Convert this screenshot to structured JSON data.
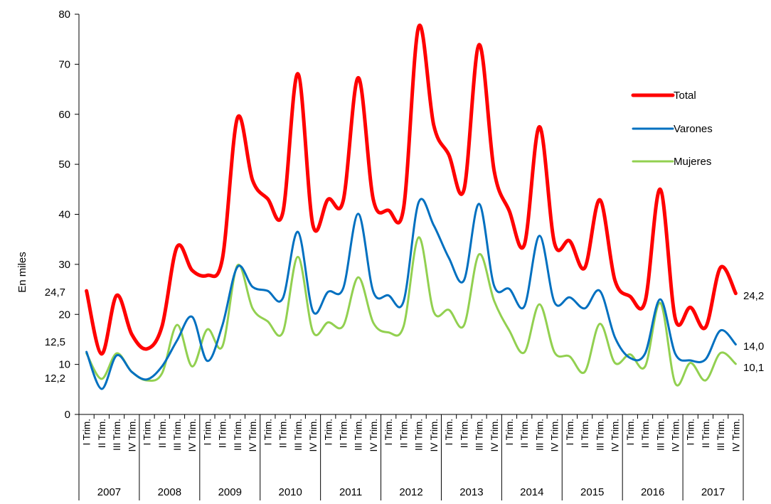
{
  "chart_data": {
    "type": "line",
    "ylabel": "En miles",
    "ylim": [
      0,
      80
    ],
    "yticks": [
      0,
      10,
      20,
      30,
      40,
      50,
      60,
      70,
      80
    ],
    "grid": false,
    "legend_position": "right",
    "years": [
      "2007",
      "2008",
      "2009",
      "2010",
      "2011",
      "2012",
      "2013",
      "2014",
      "2015",
      "2016",
      "2017"
    ],
    "quarters": [
      "I Trim.",
      "II Trim.",
      "III Trim.",
      "IV Trim."
    ],
    "series": [
      {
        "name": "Total",
        "color": "#ff0000",
        "values": [
          24.7,
          12.1,
          23.8,
          16.0,
          13.1,
          17.6,
          33.5,
          28.8,
          27.8,
          31.1,
          59.3,
          46.8,
          43.1,
          40.3,
          68.1,
          37.8,
          43.0,
          42.7,
          67.3,
          42.9,
          40.8,
          41.2,
          77.5,
          57.8,
          51.9,
          44.9,
          73.9,
          48.7,
          40.7,
          33.9,
          57.5,
          34.2,
          34.7,
          29.3,
          42.9,
          26.8,
          23.6,
          22.6,
          45.0,
          19.1,
          21.4,
          17.4,
          29.4,
          24.2
        ]
      },
      {
        "name": "Varones",
        "color": "#0070c0",
        "values": [
          12.5,
          5.1,
          11.8,
          8.5,
          7.0,
          9.6,
          14.8,
          19.5,
          10.7,
          17.8,
          29.5,
          25.5,
          24.7,
          23.2,
          36.5,
          20.6,
          24.5,
          25.2,
          40.1,
          24.5,
          23.8,
          22.6,
          42.4,
          37.8,
          31.3,
          26.8,
          42.1,
          25.7,
          25.1,
          21.6,
          35.7,
          22.4,
          23.4,
          21.2,
          24.7,
          15.4,
          11.3,
          12.2,
          23.0,
          12.1,
          10.8,
          11.0,
          16.8,
          14.0
        ]
      },
      {
        "name": "Mujeres",
        "color": "#92d050",
        "values": [
          12.2,
          7.1,
          12.2,
          8.5,
          6.8,
          8.2,
          17.9,
          9.6,
          17.0,
          13.6,
          29.8,
          21.2,
          18.6,
          16.4,
          31.5,
          16.5,
          18.4,
          17.7,
          27.4,
          18.3,
          16.4,
          17.6,
          35.4,
          20.5,
          20.9,
          17.8,
          32.0,
          22.7,
          16.8,
          12.4,
          22.0,
          12.4,
          11.6,
          8.5,
          18.1,
          10.3,
          12.0,
          9.6,
          22.3,
          6.2,
          10.3,
          6.8,
          12.3,
          10.1
        ]
      }
    ],
    "annotations": {
      "left": [
        {
          "text": "24,7",
          "value": 24.7
        },
        {
          "text": "12,5",
          "value": 12.5
        },
        {
          "text": "12,2",
          "value": 12.2
        }
      ],
      "right": [
        {
          "text": "24,2",
          "value": 24.2
        },
        {
          "text": "14,0",
          "value": 14.0
        },
        {
          "text": "10,1",
          "value": 10.1
        }
      ]
    }
  }
}
